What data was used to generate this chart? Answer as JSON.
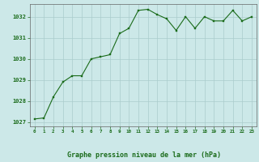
{
  "x": [
    0,
    1,
    2,
    3,
    4,
    5,
    6,
    7,
    8,
    9,
    10,
    11,
    12,
    13,
    14,
    15,
    16,
    17,
    18,
    19,
    20,
    21,
    22,
    23
  ],
  "y": [
    1027.15,
    1027.2,
    1028.2,
    1028.9,
    1029.2,
    1029.2,
    1030.0,
    1030.1,
    1030.2,
    1031.2,
    1031.45,
    1032.3,
    1032.35,
    1032.1,
    1031.9,
    1031.35,
    1032.0,
    1031.45,
    1032.0,
    1031.8,
    1031.8,
    1032.3,
    1031.8,
    1032.0
  ],
  "line_color": "#1a6b1a",
  "marker_color": "#1a6b1a",
  "bg_color": "#cce8e8",
  "grid_color": "#aacccc",
  "ylabel_ticks": [
    1027,
    1028,
    1029,
    1030,
    1031,
    1032
  ],
  "xlabel_ticks": [
    0,
    1,
    2,
    3,
    4,
    5,
    6,
    7,
    8,
    9,
    10,
    11,
    12,
    13,
    14,
    15,
    16,
    17,
    18,
    19,
    20,
    21,
    22,
    23
  ],
  "xlabel_labels": [
    "0",
    "1",
    "2",
    "3",
    "4",
    "5",
    "6",
    "7",
    "8",
    "9",
    "10",
    "11",
    "12",
    "13",
    "14",
    "15",
    "16",
    "17",
    "18",
    "19",
    "20",
    "21",
    "22",
    "23"
  ],
  "xlabel": "Graphe pression niveau de la mer (hPa)",
  "text_color": "#1a6b1a",
  "ylim": [
    1026.8,
    1032.6
  ],
  "xlim": [
    -0.5,
    23.5
  ]
}
